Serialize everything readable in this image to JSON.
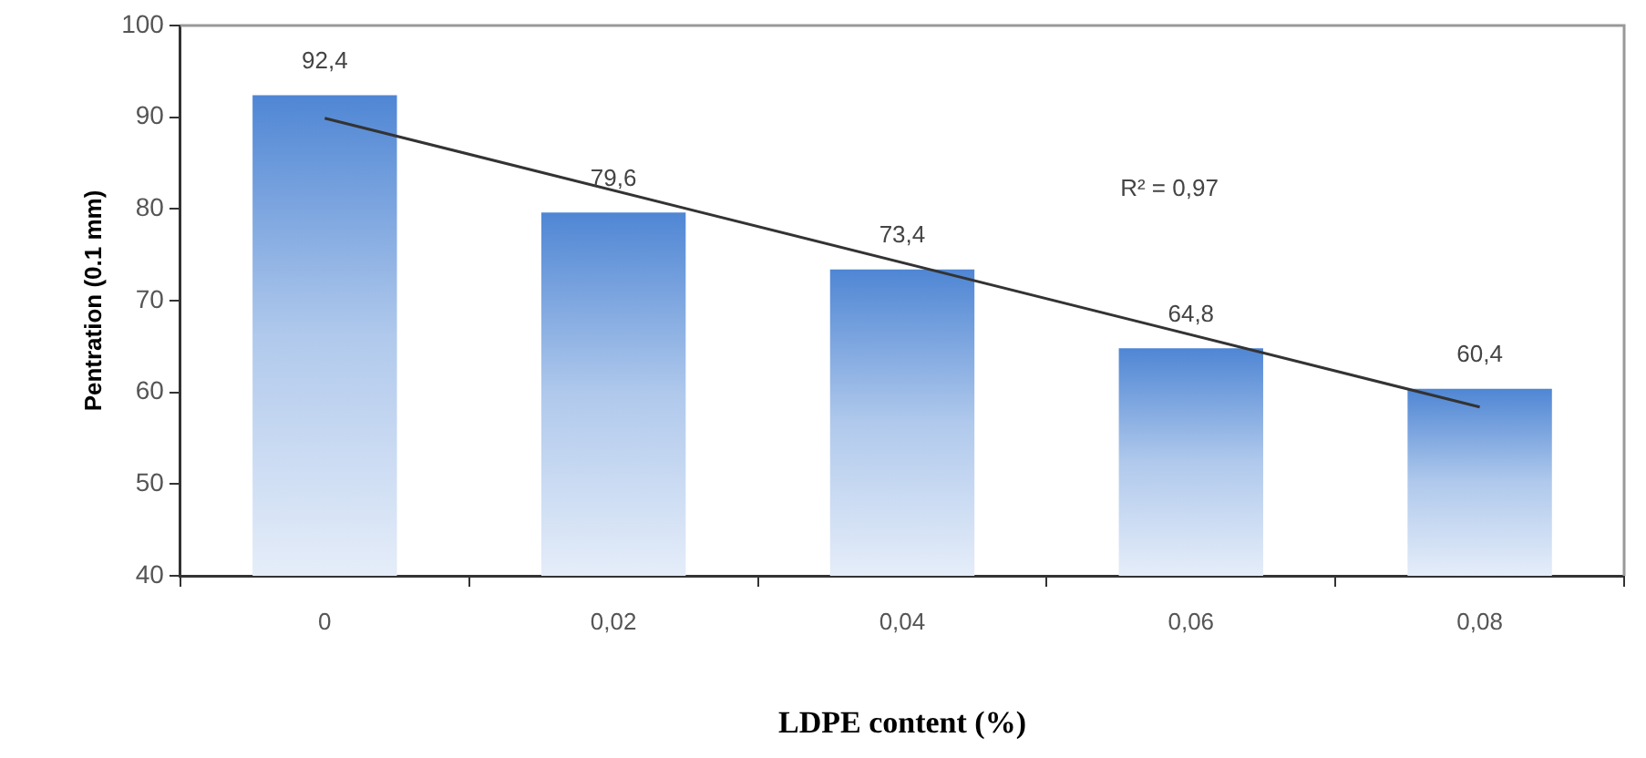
{
  "chart_data": {
    "type": "bar",
    "xlabel": "LDPE content (%)",
    "ylabel": "Pentration (0.1 mm)",
    "categories": [
      "0",
      "0,02",
      "0,04",
      "0,06",
      "0,08"
    ],
    "series": [
      {
        "color": "#4f86d4",
        "values": [
          92.4,
          79.6,
          73.4,
          64.8,
          60.4
        ],
        "value_labels": [
          "92,4",
          "79,6",
          "73,4",
          "64,8",
          "60,4"
        ]
      },
      {
        "type": "line",
        "color": "#333333",
        "x": [
          "0",
          "0,08"
        ],
        "values": [
          89.9,
          58.4
        ]
      }
    ],
    "ylim": [
      40,
      100
    ],
    "yticks": [
      40,
      50,
      60,
      70,
      80,
      90,
      100
    ],
    "grid": false,
    "legend": false,
    "marker": "none",
    "annotations": [
      "R² = 0,97"
    ]
  }
}
